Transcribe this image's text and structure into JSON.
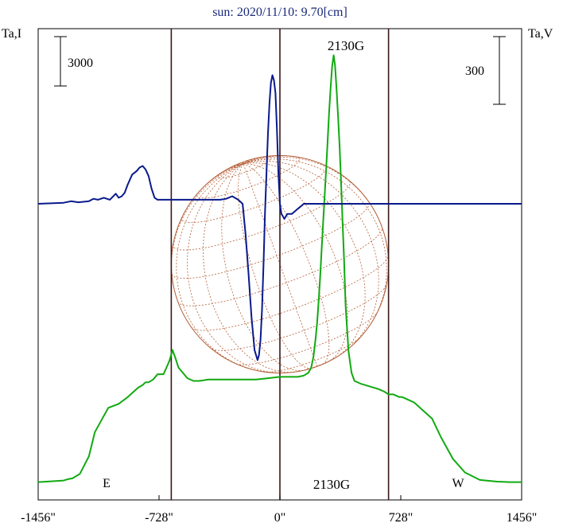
{
  "chart_data": {
    "type": "line",
    "title": "sun: 2020/11/10: 9.70[cm]",
    "ylabel_left": "Ta,I",
    "ylabel_right": "Ta,V",
    "scale_left": "3000",
    "scale_right": "300",
    "xlim": [
      -1620,
      1620
    ],
    "x_ticks": [
      {
        "value": -1456,
        "label": "-1456\""
      },
      {
        "value": -728,
        "label": "-728\""
      },
      {
        "value": 0,
        "label": "0\""
      },
      {
        "value": 728,
        "label": "728\""
      },
      {
        "value": 1456,
        "label": "1456\""
      }
    ],
    "vertical_lines": [
      -1456,
      -728,
      0,
      728,
      1456
    ],
    "limb_labels": {
      "east": "E",
      "west": "W"
    },
    "disk_radius": 728,
    "annotations": {
      "top": "2130G",
      "bottom": "2130G"
    },
    "colors": {
      "stokes_i": "#11aa11",
      "stokes_v": "#0a1a8c",
      "disk": "#b5613a",
      "grid": "#b5613a",
      "frame": "#000000",
      "vlines": "#3a1818",
      "title": "#1a2a7a"
    },
    "y_ranges": {
      "I": [
        0,
        6100
      ],
      "V": [
        -330,
        330
      ]
    },
    "series": [
      {
        "key": "I",
        "x": [
          -1620,
          -1500,
          -1450,
          -1420,
          -1390,
          -1340,
          -1280,
          -1240,
          -1200,
          -1150,
          -1080,
          -1020,
          -980,
          -950,
          -920,
          -900,
          -880,
          -850,
          -820,
          -780,
          -760,
          -740,
          -720,
          -700,
          -680,
          -650,
          -620,
          -580,
          -540,
          -480,
          -420,
          -340,
          -260,
          -160,
          -80,
          0,
          60,
          120,
          160,
          190,
          210,
          225,
          240,
          250,
          260,
          270,
          280,
          290,
          300,
          310,
          320,
          330,
          340,
          350,
          360,
          370,
          380,
          390,
          400,
          410,
          420,
          430,
          440,
          460,
          480,
          500,
          540,
          600,
          660,
          700,
          728,
          760,
          780,
          800,
          820,
          860,
          900,
          960,
          1020,
          1080,
          1160,
          1240,
          1340,
          1456,
          1540,
          1620
        ],
        "values": [
          40,
          80,
          100,
          150,
          180,
          350,
          1000,
          1900,
          2300,
          2800,
          2950,
          3200,
          3400,
          3550,
          3650,
          3750,
          3750,
          3850,
          4050,
          4050,
          4300,
          4550,
          4950,
          4650,
          4300,
          4100,
          3900,
          3800,
          3800,
          3850,
          3850,
          3850,
          3850,
          3850,
          3900,
          3950,
          3950,
          3950,
          4000,
          4100,
          4300,
          4700,
          5400,
          6000,
          6800,
          7700,
          8700,
          9700,
          10700,
          11700,
          12700,
          13800,
          14700,
          15500,
          15900,
          15500,
          14600,
          13600,
          12500,
          11200,
          9700,
          8300,
          6600,
          4900,
          4100,
          3800,
          3700,
          3600,
          3500,
          3400,
          3300,
          3300,
          3250,
          3200,
          3200,
          3100,
          3000,
          2700,
          2400,
          1700,
          900,
          400,
          120,
          60,
          40,
          40
        ]
      },
      {
        "key": "V",
        "x": [
          -1620,
          -1450,
          -1400,
          -1350,
          -1280,
          -1250,
          -1220,
          -1180,
          -1140,
          -1100,
          -1080,
          -1060,
          -1040,
          -1020,
          -990,
          -960,
          -940,
          -920,
          -900,
          -880,
          -860,
          -840,
          -820,
          -780,
          -720,
          -660,
          -580,
          -520,
          -480,
          -440,
          -400,
          -360,
          -320,
          -280,
          -250,
          -230,
          -210,
          -190,
          -170,
          -150,
          -140,
          -130,
          -120,
          -110,
          -100,
          -90,
          -80,
          -70,
          -60,
          -50,
          -40,
          -30,
          -20,
          -10,
          0,
          10,
          20,
          30,
          40,
          50,
          60,
          70,
          80,
          100,
          120,
          140,
          160,
          170,
          180,
          190,
          200,
          210,
          220,
          230,
          240,
          250,
          260,
          280,
          300,
          320,
          340,
          360,
          380,
          400,
          430,
          460,
          500,
          540,
          580,
          640,
          700,
          800,
          900,
          1000,
          1100,
          1200,
          1300,
          1400,
          1456,
          1540,
          1620
        ],
        "values": [
          0,
          2,
          5,
          3,
          5,
          10,
          8,
          12,
          8,
          20,
          12,
          15,
          22,
          38,
          58,
          65,
          72,
          75,
          68,
          55,
          30,
          12,
          8,
          8,
          8,
          8,
          8,
          8,
          8,
          8,
          8,
          10,
          15,
          8,
          0,
          -60,
          -140,
          -225,
          -290,
          -310,
          -300,
          -270,
          -210,
          -120,
          -20,
          60,
          140,
          200,
          240,
          255,
          245,
          220,
          150,
          60,
          0,
          -20,
          -25,
          -30,
          -25,
          -20,
          -20,
          -20,
          -20,
          -15,
          -10,
          -5,
          0,
          0,
          0,
          0,
          0,
          0,
          0,
          0,
          0,
          0,
          0,
          0,
          0,
          0,
          0,
          0,
          0,
          0,
          0,
          0,
          0,
          0,
          0,
          0,
          0,
          0,
          0,
          0,
          0,
          0,
          0,
          0,
          0,
          0,
          0
        ]
      }
    ],
    "grid": true,
    "legend": "none"
  }
}
